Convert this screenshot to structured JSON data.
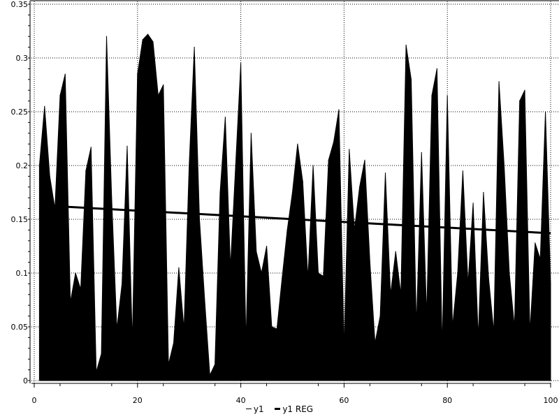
{
  "chart_data": {
    "type": "area",
    "title": "",
    "xlabel": "",
    "ylabel": "",
    "xlim": [
      0,
      100
    ],
    "ylim": [
      0,
      0.35
    ],
    "x_ticks": [
      "0",
      "20",
      "40",
      "60",
      "80",
      "100"
    ],
    "y_ticks": [
      "0",
      "0.05",
      "0.1",
      "0.15",
      "0.2",
      "0.25",
      "0.3",
      "0.35"
    ],
    "grid": true,
    "legend_position": "bottom",
    "fill_color": "#000000",
    "x": [
      1,
      2,
      3,
      4,
      5,
      6,
      7,
      8,
      9,
      10,
      11,
      12,
      13,
      14,
      15,
      16,
      17,
      18,
      19,
      20,
      21,
      22,
      23,
      24,
      25,
      26,
      27,
      28,
      29,
      30,
      31,
      32,
      33,
      34,
      35,
      36,
      37,
      38,
      39,
      40,
      41,
      42,
      43,
      44,
      45,
      46,
      47,
      48,
      49,
      50,
      51,
      52,
      53,
      54,
      55,
      56,
      57,
      58,
      59,
      60,
      61,
      62,
      63,
      64,
      65,
      66,
      67,
      68,
      69,
      70,
      71,
      72,
      73,
      74,
      75,
      76,
      77,
      78,
      79,
      80,
      81,
      82,
      83,
      84,
      85,
      86,
      87,
      88,
      89,
      90,
      91,
      92,
      93,
      94,
      95,
      96,
      97,
      98,
      99,
      100
    ],
    "series": [
      {
        "name": "y1",
        "type": "area",
        "values": [
          0.2,
          0.255,
          0.19,
          0.16,
          0.265,
          0.285,
          0.073,
          0.1,
          0.085,
          0.195,
          0.217,
          0.008,
          0.025,
          0.32,
          0.17,
          0.048,
          0.09,
          0.218,
          0.035,
          0.285,
          0.317,
          0.322,
          0.315,
          0.265,
          0.275,
          0.015,
          0.035,
          0.105,
          0.048,
          0.2,
          0.31,
          0.15,
          0.075,
          0.005,
          0.015,
          0.175,
          0.245,
          0.105,
          0.2,
          0.295,
          0.035,
          0.23,
          0.12,
          0.1,
          0.125,
          0.05,
          0.048,
          0.095,
          0.14,
          0.175,
          0.22,
          0.185,
          0.095,
          0.2,
          0.1,
          0.097,
          0.205,
          0.222,
          0.252,
          0.03,
          0.215,
          0.14,
          0.18,
          0.205,
          0.11,
          0.035,
          0.06,
          0.193,
          0.08,
          0.12,
          0.08,
          0.312,
          0.28,
          0.05,
          0.212,
          0.06,
          0.265,
          0.29,
          0.03,
          0.265,
          0.05,
          0.1,
          0.195,
          0.09,
          0.165,
          0.04,
          0.175,
          0.095,
          0.045,
          0.278,
          0.2,
          0.1,
          0.05,
          0.26,
          0.27,
          0.045,
          0.128,
          0.113,
          0.25,
          0.09
        ]
      },
      {
        "name": "y1 REG",
        "type": "line",
        "start": [
          1,
          0.163
        ],
        "end": [
          100,
          0.137
        ]
      }
    ]
  }
}
